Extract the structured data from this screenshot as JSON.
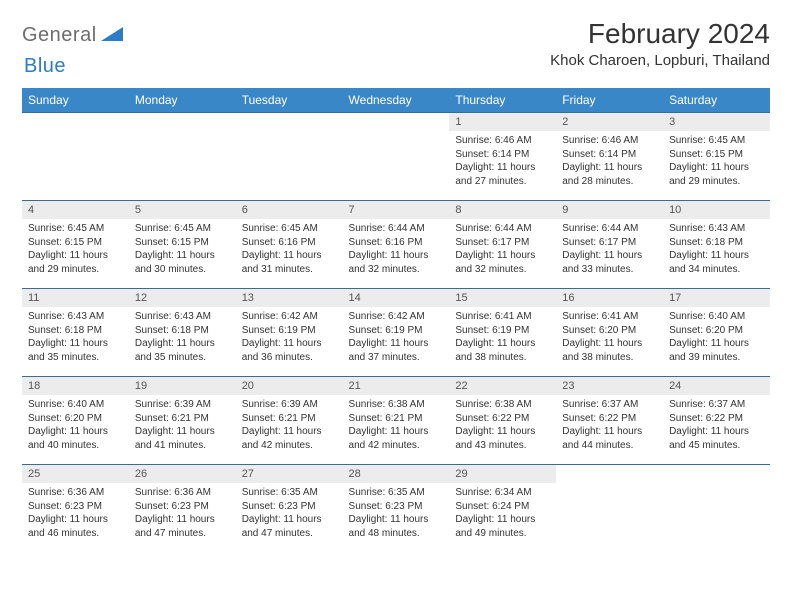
{
  "brand": {
    "part1": "General",
    "part2": "Blue"
  },
  "title": "February 2024",
  "location": "Khok Charoen, Lopburi, Thailand",
  "colors": {
    "header_bg": "#3a87c8",
    "header_text": "#ffffff",
    "row_border": "#3a6a96",
    "daynum_bg": "#ececec",
    "body_text": "#333333",
    "logo_gray": "#6d6d6d",
    "logo_blue": "#2e7cc4"
  },
  "weekdays": [
    "Sunday",
    "Monday",
    "Tuesday",
    "Wednesday",
    "Thursday",
    "Friday",
    "Saturday"
  ],
  "layout": {
    "first_weekday_index": 4,
    "days_in_month": 29,
    "cell_fontsize": 10,
    "daynum_fontsize": 11,
    "header_fontsize": 12,
    "title_fontsize": 28,
    "location_fontsize": 15
  },
  "days": [
    {
      "n": 1,
      "sunrise": "6:46 AM",
      "sunset": "6:14 PM",
      "daylight": "11 hours and 27 minutes."
    },
    {
      "n": 2,
      "sunrise": "6:46 AM",
      "sunset": "6:14 PM",
      "daylight": "11 hours and 28 minutes."
    },
    {
      "n": 3,
      "sunrise": "6:45 AM",
      "sunset": "6:15 PM",
      "daylight": "11 hours and 29 minutes."
    },
    {
      "n": 4,
      "sunrise": "6:45 AM",
      "sunset": "6:15 PM",
      "daylight": "11 hours and 29 minutes."
    },
    {
      "n": 5,
      "sunrise": "6:45 AM",
      "sunset": "6:15 PM",
      "daylight": "11 hours and 30 minutes."
    },
    {
      "n": 6,
      "sunrise": "6:45 AM",
      "sunset": "6:16 PM",
      "daylight": "11 hours and 31 minutes."
    },
    {
      "n": 7,
      "sunrise": "6:44 AM",
      "sunset": "6:16 PM",
      "daylight": "11 hours and 32 minutes."
    },
    {
      "n": 8,
      "sunrise": "6:44 AM",
      "sunset": "6:17 PM",
      "daylight": "11 hours and 32 minutes."
    },
    {
      "n": 9,
      "sunrise": "6:44 AM",
      "sunset": "6:17 PM",
      "daylight": "11 hours and 33 minutes."
    },
    {
      "n": 10,
      "sunrise": "6:43 AM",
      "sunset": "6:18 PM",
      "daylight": "11 hours and 34 minutes."
    },
    {
      "n": 11,
      "sunrise": "6:43 AM",
      "sunset": "6:18 PM",
      "daylight": "11 hours and 35 minutes."
    },
    {
      "n": 12,
      "sunrise": "6:43 AM",
      "sunset": "6:18 PM",
      "daylight": "11 hours and 35 minutes."
    },
    {
      "n": 13,
      "sunrise": "6:42 AM",
      "sunset": "6:19 PM",
      "daylight": "11 hours and 36 minutes."
    },
    {
      "n": 14,
      "sunrise": "6:42 AM",
      "sunset": "6:19 PM",
      "daylight": "11 hours and 37 minutes."
    },
    {
      "n": 15,
      "sunrise": "6:41 AM",
      "sunset": "6:19 PM",
      "daylight": "11 hours and 38 minutes."
    },
    {
      "n": 16,
      "sunrise": "6:41 AM",
      "sunset": "6:20 PM",
      "daylight": "11 hours and 38 minutes."
    },
    {
      "n": 17,
      "sunrise": "6:40 AM",
      "sunset": "6:20 PM",
      "daylight": "11 hours and 39 minutes."
    },
    {
      "n": 18,
      "sunrise": "6:40 AM",
      "sunset": "6:20 PM",
      "daylight": "11 hours and 40 minutes."
    },
    {
      "n": 19,
      "sunrise": "6:39 AM",
      "sunset": "6:21 PM",
      "daylight": "11 hours and 41 minutes."
    },
    {
      "n": 20,
      "sunrise": "6:39 AM",
      "sunset": "6:21 PM",
      "daylight": "11 hours and 42 minutes."
    },
    {
      "n": 21,
      "sunrise": "6:38 AM",
      "sunset": "6:21 PM",
      "daylight": "11 hours and 42 minutes."
    },
    {
      "n": 22,
      "sunrise": "6:38 AM",
      "sunset": "6:22 PM",
      "daylight": "11 hours and 43 minutes."
    },
    {
      "n": 23,
      "sunrise": "6:37 AM",
      "sunset": "6:22 PM",
      "daylight": "11 hours and 44 minutes."
    },
    {
      "n": 24,
      "sunrise": "6:37 AM",
      "sunset": "6:22 PM",
      "daylight": "11 hours and 45 minutes."
    },
    {
      "n": 25,
      "sunrise": "6:36 AM",
      "sunset": "6:23 PM",
      "daylight": "11 hours and 46 minutes."
    },
    {
      "n": 26,
      "sunrise": "6:36 AM",
      "sunset": "6:23 PM",
      "daylight": "11 hours and 47 minutes."
    },
    {
      "n": 27,
      "sunrise": "6:35 AM",
      "sunset": "6:23 PM",
      "daylight": "11 hours and 47 minutes."
    },
    {
      "n": 28,
      "sunrise": "6:35 AM",
      "sunset": "6:23 PM",
      "daylight": "11 hours and 48 minutes."
    },
    {
      "n": 29,
      "sunrise": "6:34 AM",
      "sunset": "6:24 PM",
      "daylight": "11 hours and 49 minutes."
    }
  ],
  "labels": {
    "sunrise": "Sunrise:",
    "sunset": "Sunset:",
    "daylight": "Daylight:"
  }
}
